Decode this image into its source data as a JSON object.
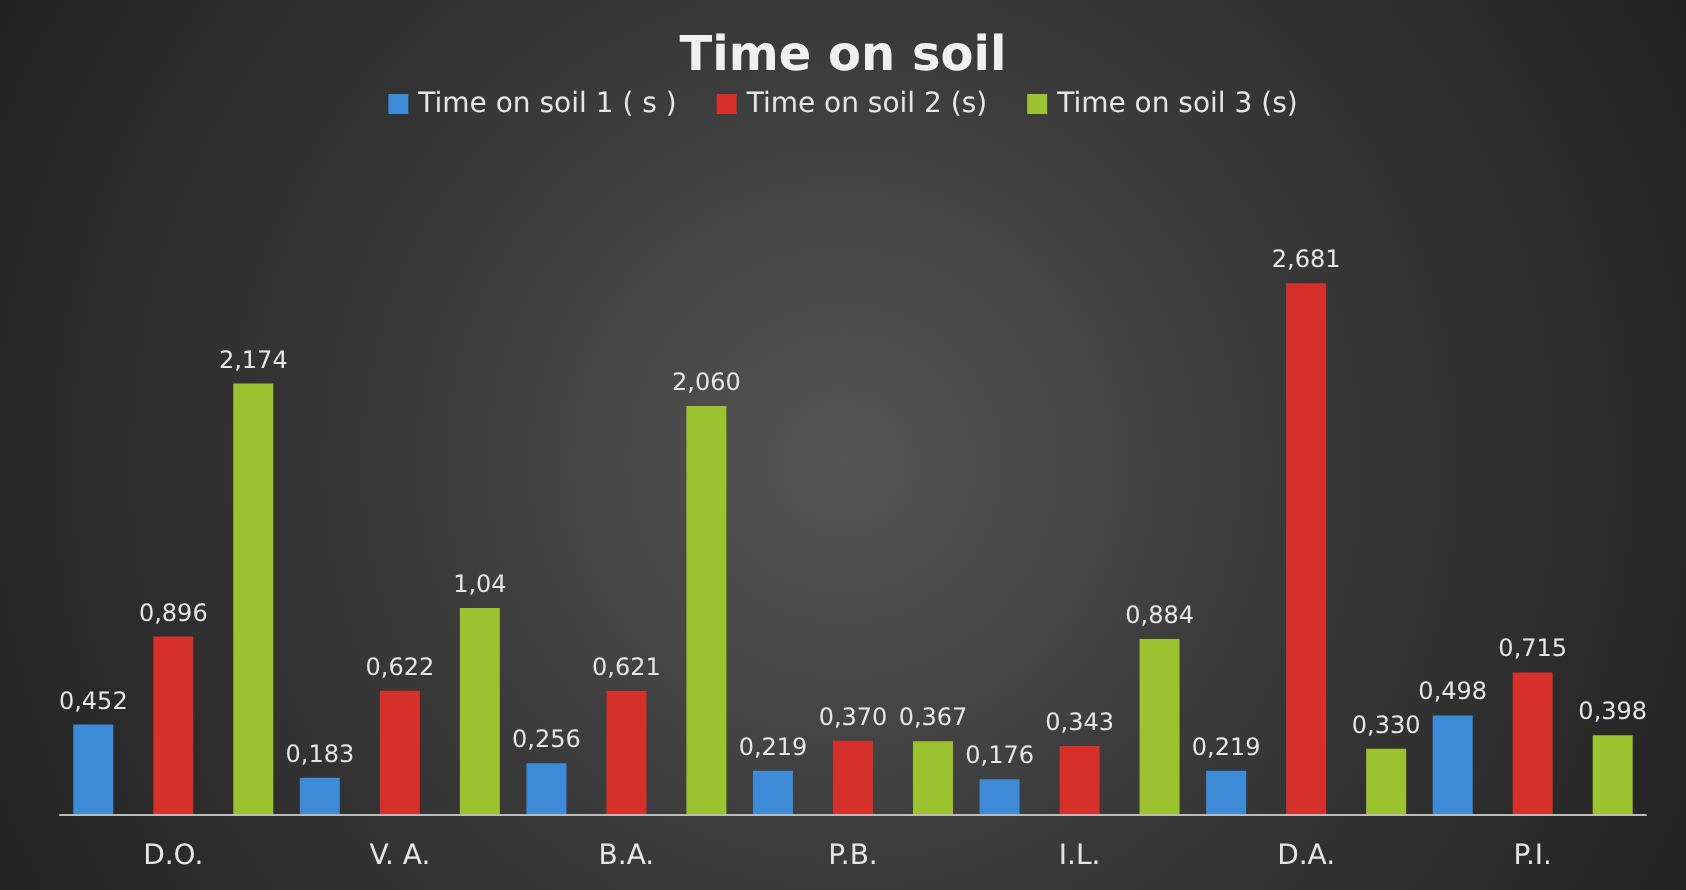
{
  "chart_data": {
    "type": "bar",
    "title": "Time on soil",
    "categories": [
      "D.O.",
      "V. A.",
      "B.A.",
      "P.B.",
      "I.L.",
      "D.A.",
      "P.I."
    ],
    "series": [
      {
        "name": "Time on soil 1 ( s )",
        "color": "#3d8ad6",
        "values": [
          0.452,
          0.183,
          0.256,
          0.219,
          0.176,
          0.219,
          0.498
        ],
        "value_labels": [
          "0,452",
          "0,183",
          "0,256",
          "0,219",
          "0,176",
          "0,219",
          "0,498"
        ]
      },
      {
        "name": "Time on soil 2 (s)",
        "color": "#d6302a",
        "values": [
          0.896,
          0.622,
          0.621,
          0.37,
          0.343,
          2.681,
          0.715
        ],
        "value_labels": [
          "0,896",
          "0,622",
          "0,621",
          "0,370",
          "0,343",
          "2,681",
          "0,715"
        ]
      },
      {
        "name": "Time on soil 3 (s)",
        "color": "#9cc230",
        "values": [
          2.174,
          1.04,
          2.06,
          0.367,
          0.884,
          0.33,
          0.398
        ],
        "value_labels": [
          "2,174",
          "1,04",
          "2,060",
          "0,367",
          "0,884",
          "0,330",
          "0,398"
        ]
      }
    ],
    "legend": "top",
    "grid": false
  }
}
